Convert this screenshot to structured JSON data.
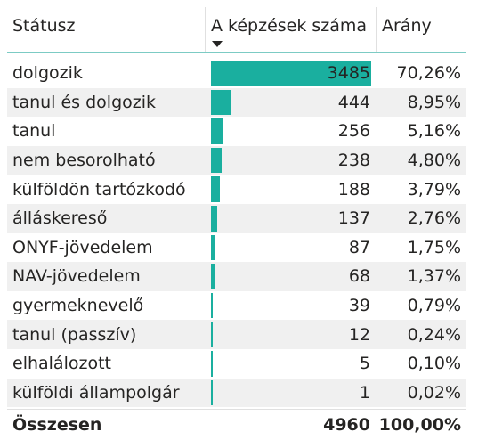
{
  "header": {
    "status": "Státusz",
    "count": "A képzések száma",
    "ratio": "Arány"
  },
  "colors": {
    "bar": "#1aaf9f",
    "header_border": "#7ccbc4",
    "alt_row": "#f0f0f0"
  },
  "rows": [
    {
      "status": "dolgozik",
      "count": 3485,
      "ratio": "70,26%"
    },
    {
      "status": "tanul és dolgozik",
      "count": 444,
      "ratio": "8,95%"
    },
    {
      "status": "tanul",
      "count": 256,
      "ratio": "5,16%"
    },
    {
      "status": "nem besorolható",
      "count": 238,
      "ratio": "4,80%"
    },
    {
      "status": "külföldön tartózkodó",
      "count": 188,
      "ratio": "3,79%"
    },
    {
      "status": "álláskereső",
      "count": 137,
      "ratio": "2,76%"
    },
    {
      "status": "ONYF-jövedelem",
      "count": 87,
      "ratio": "1,75%"
    },
    {
      "status": "NAV-jövedelem",
      "count": 68,
      "ratio": "1,37%"
    },
    {
      "status": "gyermeknevelő",
      "count": 39,
      "ratio": "0,79%"
    },
    {
      "status": "tanul (passzív)",
      "count": 12,
      "ratio": "0,24%"
    },
    {
      "status": "elhalálozott",
      "count": 5,
      "ratio": "0,10%"
    },
    {
      "status": "külföldi állampolgár",
      "count": 1,
      "ratio": "0,02%"
    }
  ],
  "total": {
    "label": "Összesen",
    "count": "4960",
    "ratio": "100,00%"
  }
}
